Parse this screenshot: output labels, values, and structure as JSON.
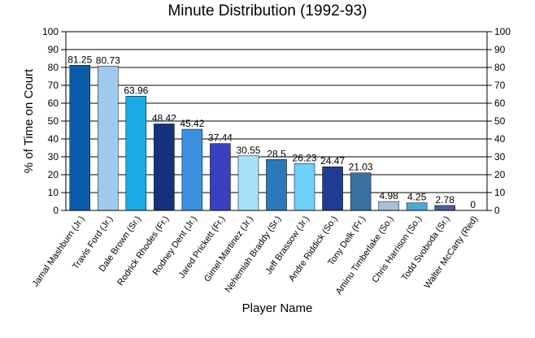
{
  "chart_data": {
    "type": "bar",
    "title": "Minute Distribution (1992-93)",
    "xlabel": "Player Name",
    "ylabel": "% of Time on Court",
    "ylim": [
      0,
      100
    ],
    "yticks": [
      0,
      10,
      20,
      30,
      40,
      50,
      60,
      70,
      80,
      90,
      100
    ],
    "grid": true,
    "categories": [
      "Jamal Mashburn (Jr.)",
      "Travis Ford (Jr.)",
      "Dale Brown (Sr.)",
      "Rodrick Rhodes (Fr.)",
      "Rodney Dent (Jr.)",
      "Jared Prickett (Fr.)",
      "Gimel Martinez (Jr.)",
      "Nehemiah Braddy (Sr.)",
      "Jeff Brassow (Jr.)",
      "Andre Riddick (So.)",
      "Tony Delk (Fr.)",
      "Aminu Timberlake (So.)",
      "Chris Harrison (So.)",
      "Todd Svoboda (Sr.)",
      "Walter McCarty (Red)"
    ],
    "values": [
      81.25,
      80.73,
      63.96,
      48.42,
      45.42,
      37.44,
      30.55,
      28.5,
      26.23,
      24.47,
      21.03,
      4.98,
      4.25,
      2.78,
      0
    ],
    "value_labels": [
      "81.25",
      "80.73",
      "63.96",
      "48.42",
      "45.42",
      "37.44",
      "30.55",
      "28.5",
      "26.23",
      "24.47",
      "21.03",
      "4.98",
      "4.25",
      "2.78",
      "0"
    ],
    "colors": [
      "#0a5ca8",
      "#9ecaf0",
      "#1aaae6",
      "#14337e",
      "#3c90e0",
      "#3a3fbf",
      "#a8e0f8",
      "#2d78b8",
      "#6fd0fa",
      "#1d3c92",
      "#3a70a2",
      "#a9c0da",
      "#4aa8d6",
      "#4a5e96",
      "#8fa4c6"
    ]
  }
}
